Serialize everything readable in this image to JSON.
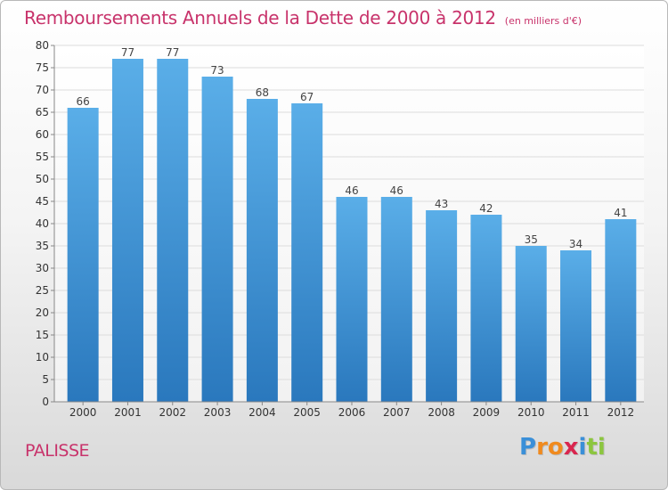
{
  "header": {
    "title": "Remboursements Annuels de la Dette de 2000 à 2012",
    "subtitle": "(en milliers d'€)"
  },
  "footer": {
    "place": "PALISSE",
    "logo_letters": [
      "P",
      "r",
      "o",
      "x",
      "i",
      "t",
      "i"
    ],
    "logo_colors": [
      "#3a8fd8",
      "#f08a1e",
      "#f08a1e",
      "#d9264e",
      "#3a8fd8",
      "#8cc63f",
      "#8cc63f"
    ]
  },
  "chart_data": {
    "type": "bar",
    "title": "Remboursements Annuels de la Dette de 2000 à 2012",
    "subtitle": "(en milliers d'€)",
    "categories": [
      "2000",
      "2001",
      "2002",
      "2003",
      "2004",
      "2005",
      "2006",
      "2007",
      "2008",
      "2009",
      "2010",
      "2011",
      "2012"
    ],
    "values": [
      66,
      77,
      77,
      73,
      68,
      67,
      46,
      46,
      43,
      42,
      35,
      34,
      41
    ],
    "ylim": [
      0,
      80
    ],
    "yticks": [
      0,
      5,
      10,
      15,
      20,
      25,
      30,
      35,
      40,
      45,
      50,
      55,
      60,
      65,
      70,
      75,
      80
    ],
    "grid": true,
    "legend": "none",
    "bar_color_top": "#5aaee8",
    "bar_color_bottom": "#2a78bd",
    "label_color": "#444444",
    "text_accent": "#c8336b"
  }
}
